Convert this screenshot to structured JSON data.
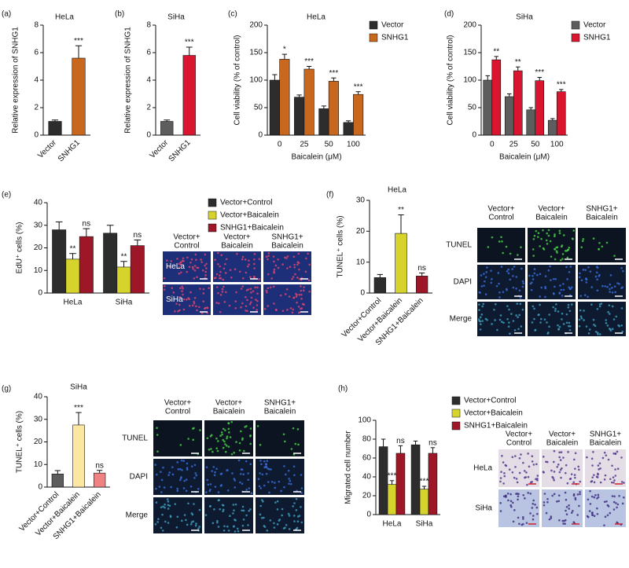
{
  "chart_data": [
    {
      "type": "bar",
      "panel": "(a)",
      "title": "HeLa",
      "ylabel": "Relative expression of SNHG1",
      "categories": [
        "Vector",
        "SNHG1"
      ],
      "values": [
        1.0,
        5.6
      ],
      "errors": [
        0.1,
        0.9
      ],
      "annotations": [
        null,
        "***"
      ],
      "colors": [
        "#2d2d2d",
        "#c8671e"
      ],
      "ylim": [
        0,
        8
      ],
      "yticks": [
        0,
        2,
        4,
        6,
        8
      ]
    },
    {
      "type": "bar",
      "panel": "(b)",
      "title": "SiHa",
      "ylabel": "Relative expression of SNHG1",
      "categories": [
        "Vector",
        "SNHG1"
      ],
      "values": [
        1.0,
        5.8
      ],
      "errors": [
        0.1,
        0.6
      ],
      "annotations": [
        null,
        "***"
      ],
      "colors": [
        "#5d5d5d",
        "#d9152f"
      ],
      "ylim": [
        0,
        8
      ],
      "yticks": [
        0,
        2,
        4,
        6,
        8
      ]
    },
    {
      "type": "grouped-bar",
      "panel": "(c)",
      "title": "HeLa",
      "ylabel": "Cell viability (% of control)",
      "xlabel": "Baicalein (μM)",
      "categories": [
        "0",
        "25",
        "50",
        "100"
      ],
      "series": [
        {
          "name": "Vector",
          "color": "#2d2d2d",
          "values": [
            100,
            69,
            48,
            23
          ],
          "errors": [
            10,
            4,
            5,
            3
          ]
        },
        {
          "name": "SNHG1",
          "color": "#c8671e",
          "values": [
            138,
            120,
            98,
            74
          ],
          "errors": [
            9,
            5,
            6,
            5
          ],
          "annotations": [
            "*",
            "***",
            "***",
            "***"
          ]
        }
      ],
      "ylim": [
        0,
        200
      ],
      "yticks": [
        0,
        50,
        100,
        150,
        200
      ],
      "legend": "upper-right"
    },
    {
      "type": "grouped-bar",
      "panel": "(d)",
      "title": "SiHa",
      "ylabel": "Cell viability (% of control)",
      "xlabel": "Baicalein (μM)",
      "categories": [
        "0",
        "25",
        "50",
        "100"
      ],
      "series": [
        {
          "name": "Vector",
          "color": "#5d5d5d",
          "values": [
            100,
            70,
            46,
            27
          ],
          "errors": [
            8,
            5,
            4,
            3
          ]
        },
        {
          "name": "SNHG1",
          "color": "#d9152f",
          "values": [
            137,
            117,
            99,
            79
          ],
          "errors": [
            6,
            7,
            6,
            4
          ],
          "annotations": [
            "**",
            "**",
            "***",
            "***"
          ]
        }
      ],
      "ylim": [
        0,
        200
      ],
      "yticks": [
        0,
        50,
        100,
        150,
        200
      ],
      "legend": "upper-right"
    },
    {
      "type": "grouped-bar",
      "panel": "(e)",
      "ylabel": "EdU⁺ cells (%)",
      "categories": [
        "HeLa",
        "SiHa"
      ],
      "series": [
        {
          "name": "Vector+Control",
          "color": "#2d2d2d",
          "values": [
            28,
            26.5
          ],
          "errors": [
            3.5,
            3.5
          ]
        },
        {
          "name": "Vector+Baicalein",
          "color": "#d6d42c",
          "values": [
            15,
            11.5
          ],
          "errors": [
            2.5,
            2.5
          ],
          "annotations": [
            "**",
            "**"
          ]
        },
        {
          "name": "SNHG1+Baicalein",
          "color": "#9e1728",
          "values": [
            25,
            21
          ],
          "errors": [
            3.5,
            2.5
          ],
          "annotations": [
            "ns",
            "ns"
          ]
        }
      ],
      "ylim": [
        0,
        40
      ],
      "yticks": [
        0,
        10,
        20,
        30,
        40
      ],
      "legend": "right",
      "images": {
        "columns": [
          [
            "Vector+",
            "Control"
          ],
          [
            "Vector+",
            "Baicalein"
          ],
          [
            "SNHG1+",
            "Baicalein"
          ]
        ],
        "rows": [
          "HeLa",
          "SiHa"
        ]
      }
    },
    {
      "type": "bar",
      "panel": "(f)",
      "title": "HeLa",
      "ylabel": "TUNEL⁺ cells (%)",
      "categories": [
        "Vector+Control",
        "Vector+Baicalein",
        "SNHG1+Baicalein"
      ],
      "values": [
        5,
        19.3,
        5.5
      ],
      "errors": [
        1,
        6,
        1
      ],
      "annotations": [
        null,
        "**",
        "ns"
      ],
      "colors": [
        "#2d2d2d",
        "#d6d42c",
        "#9e1728"
      ],
      "ylim": [
        0,
        30
      ],
      "yticks": [
        0,
        10,
        20,
        30
      ],
      "images": {
        "columns": [
          [
            "Vector+",
            "Control"
          ],
          [
            "Vector+",
            "Baicalein"
          ],
          [
            "SNHG1+",
            "Baicalein"
          ]
        ],
        "rows": [
          "TUNEL",
          "DAPI",
          "Merge"
        ]
      }
    },
    {
      "type": "bar",
      "panel": "(g)",
      "title": "SiHa",
      "ylabel": "TUNEL⁺ cells (%)",
      "categories": [
        "Vector+Control",
        "Vector+Baicalein",
        "SNHG1+Baicalein"
      ],
      "values": [
        5.8,
        27.5,
        6.2
      ],
      "errors": [
        1.5,
        5.5,
        1.2
      ],
      "annotations": [
        null,
        "***",
        "ns"
      ],
      "colors": [
        "#5d5d5d",
        "#fbe6a2",
        "#ef8383"
      ],
      "ylim": [
        0,
        40
      ],
      "yticks": [
        0,
        10,
        20,
        30,
        40
      ],
      "images": {
        "columns": [
          [
            "Vector+",
            "Control"
          ],
          [
            "Vector+",
            "Baicalein"
          ],
          [
            "SNHG1+",
            "Baicalein"
          ]
        ],
        "rows": [
          "TUNEL",
          "DAPI",
          "Merge"
        ]
      }
    },
    {
      "type": "grouped-bar",
      "panel": "(h)",
      "ylabel": "Migrated cell number",
      "categories": [
        "HeLa",
        "SiHa"
      ],
      "series": [
        {
          "name": "Vector+Control",
          "color": "#2d2d2d",
          "values": [
            72,
            74
          ],
          "errors": [
            8,
            4
          ]
        },
        {
          "name": "Vector+Baicalein",
          "color": "#d6d42c",
          "values": [
            32,
            27
          ],
          "errors": [
            4,
            3
          ],
          "annotations": [
            "***",
            "***"
          ]
        },
        {
          "name": "SNHG1+Baicalein",
          "color": "#9e1728",
          "values": [
            65,
            65
          ],
          "errors": [
            8,
            6
          ],
          "annotations": [
            "ns",
            "ns"
          ]
        }
      ],
      "ylim": [
        0,
        100
      ],
      "yticks": [
        0,
        20,
        40,
        60,
        80,
        100
      ],
      "legend": "upper-right",
      "images": {
        "columns": [
          [
            "Vector+",
            "Control"
          ],
          [
            "Vector+",
            "Baicalein"
          ],
          [
            "SNHG1+",
            "Baicalein"
          ]
        ],
        "rows": [
          "HeLa",
          "SiHa"
        ]
      }
    }
  ]
}
